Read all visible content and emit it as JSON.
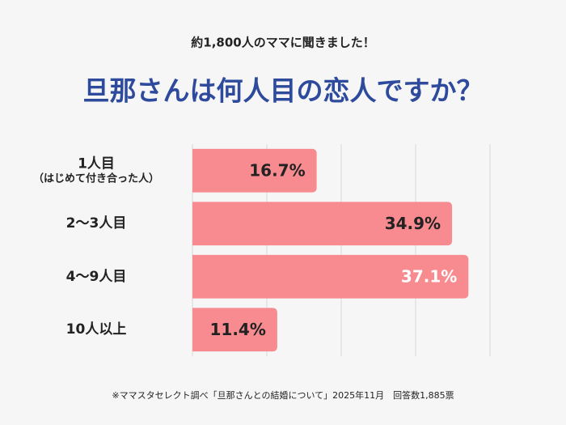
{
  "chart_data": {
    "type": "barh",
    "subtitle": "約1,800人のママに聞きました！",
    "title": "旦那さんは何人目の恋人ですか？",
    "categories": [
      "1人目\n（はじめて付き合った人）",
      "2〜3人目",
      "4〜9人目",
      "10人以上"
    ],
    "values": [
      16.7,
      34.9,
      37.1,
      11.4
    ],
    "value_labels": [
      "16.7%",
      "34.9%",
      "37.1%",
      "11.4%"
    ],
    "value_label_colors": [
      "#222222",
      "#222222",
      "#ffffff",
      "#222222"
    ],
    "color": "#f78b90",
    "xlim": [
      0,
      40
    ],
    "xticks": [
      0,
      10,
      20,
      30,
      40
    ],
    "grid": true,
    "note": "※ママスタセレクト調べ「旦那さんとの結婚について」2025年11月　回答数1,885票"
  }
}
